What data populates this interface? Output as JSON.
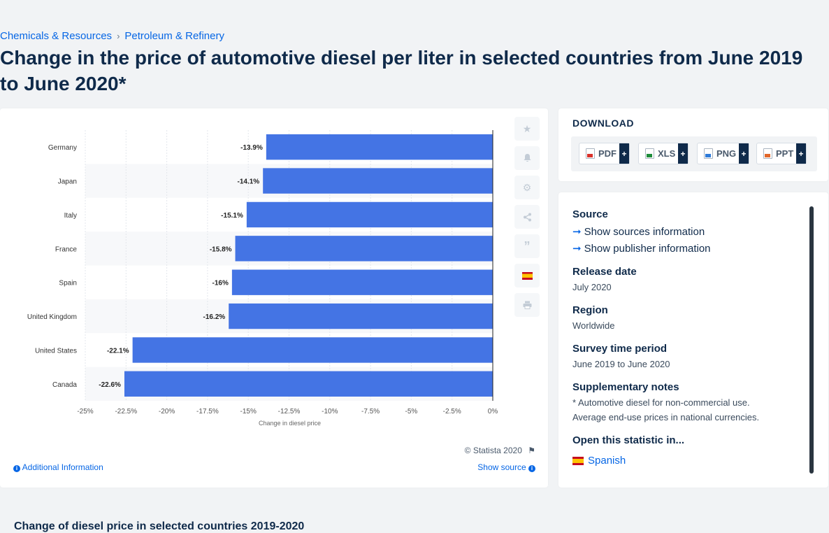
{
  "breadcrumb": {
    "item1": "Chemicals & Resources",
    "sep": "›",
    "item2": "Petroleum & Refinery"
  },
  "page_title": "Change in the price of automotive diesel per liter in selected countries from June 2019 to June 2020*",
  "chart_data": {
    "type": "bar",
    "orientation": "horizontal",
    "categories": [
      "Germany",
      "Japan",
      "Italy",
      "France",
      "Spain",
      "United Kingdom",
      "United States",
      "Canada"
    ],
    "values": [
      -13.9,
      -14.1,
      -15.1,
      -15.8,
      -16,
      -16.2,
      -22.1,
      -22.6
    ],
    "value_labels": [
      "-13.9%",
      "-14.1%",
      "-15.1%",
      "-15.8%",
      "-16%",
      "-16.2%",
      "-22.1%",
      "-22.6%"
    ],
    "xlabel": "Change in diesel price",
    "xlim": [
      -25,
      0
    ],
    "xticks": [
      -25,
      -22.5,
      -20,
      -17.5,
      -15,
      -12.5,
      -10,
      -7.5,
      -5,
      -2.5,
      0
    ],
    "xtick_labels": [
      "-25%",
      "-22.5%",
      "-20%",
      "-17.5%",
      "-15%",
      "-12.5%",
      "-10%",
      "-7.5%",
      "-5%",
      "-2.5%",
      "0%"
    ],
    "bar_color": "#4474e4",
    "grid": true
  },
  "chart_footer": {
    "copyright": "© Statista 2020",
    "additional_info": "Additional Information",
    "show_source": "Show source"
  },
  "toolbar": {
    "icons": [
      "star-icon",
      "bell-icon",
      "gear-icon",
      "share-icon",
      "quote-icon",
      "spain-flag-icon",
      "print-icon"
    ]
  },
  "download": {
    "title": "DOWNLOAD",
    "pdf": "PDF",
    "xls": "XLS",
    "png": "PNG",
    "ppt": "PPT",
    "plus": "+"
  },
  "info": {
    "source_h": "Source",
    "show_sources": "Show sources information",
    "show_publisher": "Show publisher information",
    "release_h": "Release date",
    "release_v": "July 2020",
    "region_h": "Region",
    "region_v": "Worldwide",
    "survey_h": "Survey time period",
    "survey_v": "June 2019 to June 2020",
    "supp_h": "Supplementary notes",
    "supp_v1": "* Automotive diesel for non-commercial use.",
    "supp_v2": "Average end-use prices in national currencies.",
    "open_h": "Open this statistic in...",
    "open_v": "Spanish"
  },
  "bottom_title": "Change of diesel price in selected countries 2019-2020",
  "colors": {
    "accent": "#0666e5",
    "navy": "#0f2a4a",
    "bar": "#4474e4"
  }
}
